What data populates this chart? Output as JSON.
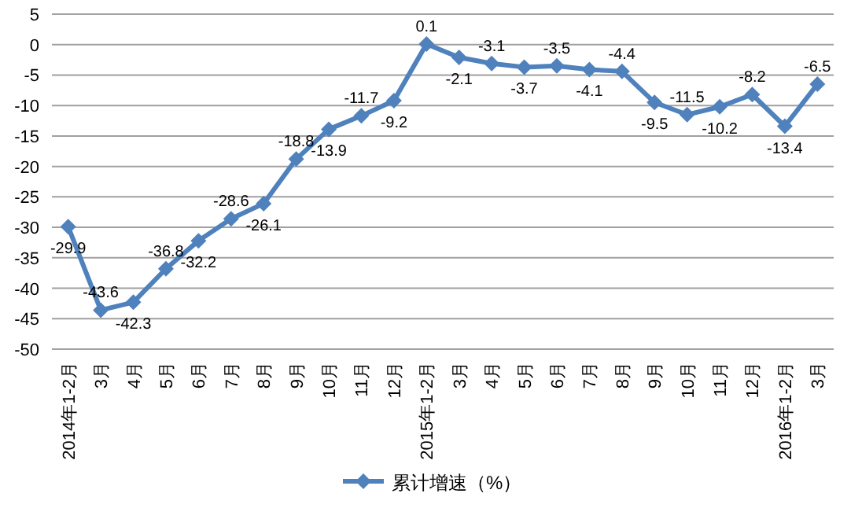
{
  "chart_data": {
    "type": "line",
    "categories": [
      "2014年1-2月",
      "3月",
      "4月",
      "5月",
      "6月",
      "7月",
      "8月",
      "9月",
      "10月",
      "11月",
      "12月",
      "2015年1-2月",
      "3月",
      "4月",
      "5月",
      "6月",
      "7月",
      "8月",
      "9月",
      "10月",
      "11月",
      "12月",
      "2016年1-2月",
      "3月"
    ],
    "series": [
      {
        "name": "累计增速（%）",
        "color": "#4f81bd",
        "values": [
          -29.9,
          -43.6,
          -42.3,
          -36.8,
          -32.2,
          -28.6,
          -26.1,
          -18.8,
          -13.9,
          -11.7,
          -9.2,
          0.1,
          -2.1,
          -3.1,
          -3.7,
          -3.5,
          -4.1,
          -4.4,
          -9.5,
          -11.5,
          -10.2,
          -8.2,
          -13.4,
          -6.5
        ]
      }
    ],
    "ylim": [
      -50,
      5
    ],
    "yticks": [
      5,
      0,
      -5,
      -10,
      -15,
      -20,
      -25,
      -30,
      -35,
      -40,
      -45,
      -50
    ],
    "grid": "y",
    "legend": "bottom",
    "marker": "diamond",
    "line_style": "solid",
    "data_labels": true
  }
}
